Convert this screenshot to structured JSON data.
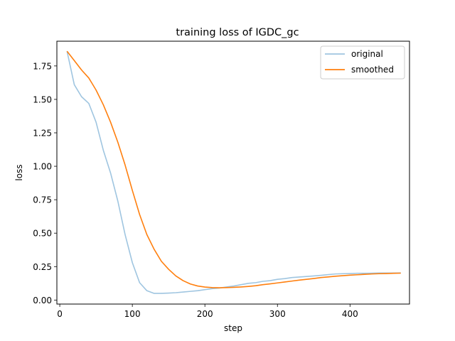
{
  "chart_data": {
    "type": "line",
    "title": "training loss of IGDC_gc",
    "xlabel": "step",
    "ylabel": "loss",
    "xlim": [
      -4,
      482
    ],
    "ylim": [
      -0.03,
      1.935
    ],
    "xticks": [
      0,
      100,
      200,
      300,
      400
    ],
    "yticks": [
      0.0,
      0.25,
      0.5,
      0.75,
      1.0,
      1.25,
      1.5,
      1.75
    ],
    "xtick_labels": [
      "0",
      "100",
      "200",
      "300",
      "400"
    ],
    "ytick_labels": [
      "0.00",
      "0.25",
      "0.50",
      "0.75",
      "1.00",
      "1.25",
      "1.50",
      "1.75"
    ],
    "grid": false,
    "legend_position": "top-right",
    "x": [
      10,
      20,
      30,
      40,
      50,
      60,
      70,
      80,
      90,
      100,
      110,
      120,
      130,
      140,
      150,
      160,
      170,
      180,
      190,
      200,
      210,
      220,
      230,
      240,
      250,
      260,
      270,
      280,
      290,
      300,
      310,
      320,
      330,
      340,
      350,
      360,
      370,
      380,
      390,
      400,
      410,
      420,
      430,
      440,
      450,
      460,
      470
    ],
    "series": [
      {
        "name": "original",
        "color": "#9fc5e0",
        "values": [
          1.86,
          1.61,
          1.52,
          1.47,
          1.33,
          1.12,
          0.95,
          0.74,
          0.49,
          0.28,
          0.13,
          0.07,
          0.05,
          0.05,
          0.052,
          0.055,
          0.06,
          0.065,
          0.07,
          0.078,
          0.085,
          0.09,
          0.098,
          0.105,
          0.115,
          0.125,
          0.13,
          0.14,
          0.145,
          0.155,
          0.16,
          0.168,
          0.172,
          0.176,
          0.18,
          0.185,
          0.19,
          0.195,
          0.197,
          0.198,
          0.2,
          0.2,
          0.201,
          0.202,
          0.202,
          0.202,
          0.203
        ]
      },
      {
        "name": "smoothed",
        "color": "#ff7f0e",
        "values": [
          1.86,
          1.79,
          1.72,
          1.66,
          1.57,
          1.46,
          1.33,
          1.18,
          1.01,
          0.82,
          0.64,
          0.49,
          0.38,
          0.29,
          0.23,
          0.18,
          0.145,
          0.12,
          0.105,
          0.097,
          0.093,
          0.092,
          0.093,
          0.095,
          0.098,
          0.102,
          0.107,
          0.115,
          0.121,
          0.128,
          0.135,
          0.142,
          0.149,
          0.155,
          0.161,
          0.168,
          0.173,
          0.178,
          0.182,
          0.186,
          0.189,
          0.192,
          0.195,
          0.197,
          0.198,
          0.2,
          0.201
        ]
      }
    ]
  }
}
